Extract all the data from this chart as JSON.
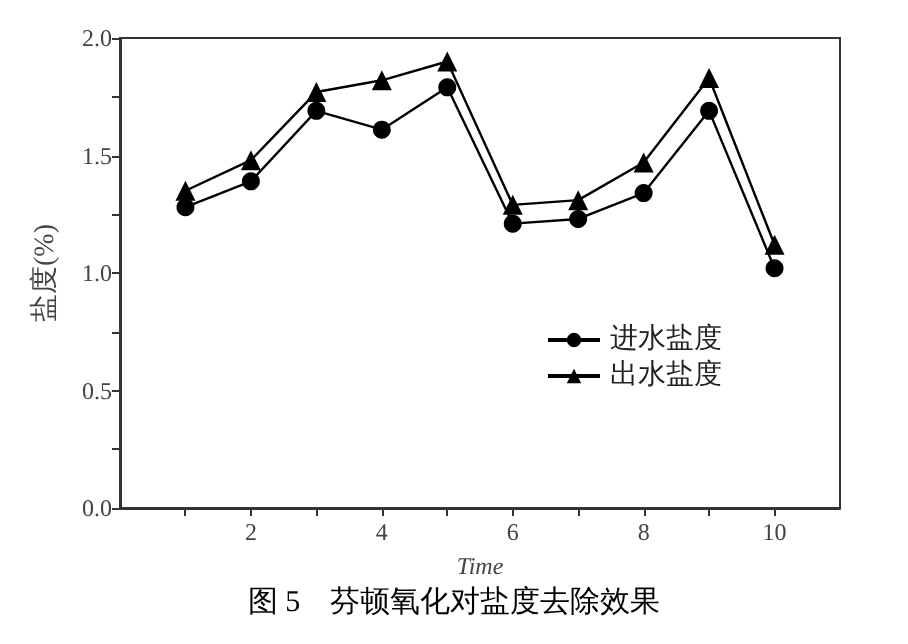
{
  "chart_data": {
    "type": "line",
    "title": "图 5　芬顿氧化对盐度去除效果",
    "xlabel": "Time",
    "ylabel": "盐度(%)",
    "x": [
      1,
      2,
      3,
      4,
      5,
      6,
      7,
      8,
      9,
      10
    ],
    "series": [
      {
        "name": "进水盐度",
        "color": "#000000",
        "marker": "circle",
        "values": [
          1.28,
          1.39,
          1.69,
          1.61,
          1.79,
          1.21,
          1.23,
          1.34,
          1.69,
          1.02
        ]
      },
      {
        "name": "出水盐度",
        "color": "#000000",
        "marker": "triangle",
        "values": [
          1.35,
          1.48,
          1.77,
          1.82,
          1.9,
          1.29,
          1.31,
          1.47,
          1.83,
          1.12
        ]
      }
    ],
    "xlim": [
      0,
      11
    ],
    "xticks": [
      {
        "value": 1,
        "label": null
      },
      2,
      {
        "value": 3,
        "label": null
      },
      4,
      {
        "value": 5,
        "label": null
      },
      6,
      {
        "value": 7,
        "label": null
      },
      8,
      {
        "value": 9,
        "label": null
      },
      10
    ],
    "ylim": [
      0,
      2
    ],
    "yticks": [
      "0.0",
      {
        "value": 0.25,
        "label": null
      },
      0.5,
      {
        "value": 0.75,
        "label": null
      },
      "1.0",
      {
        "value": 1.25,
        "label": null
      },
      1.5,
      {
        "value": 1.75,
        "label": null
      },
      "2.0"
    ],
    "grid": false,
    "legend": "right",
    "line_style": "solid"
  }
}
